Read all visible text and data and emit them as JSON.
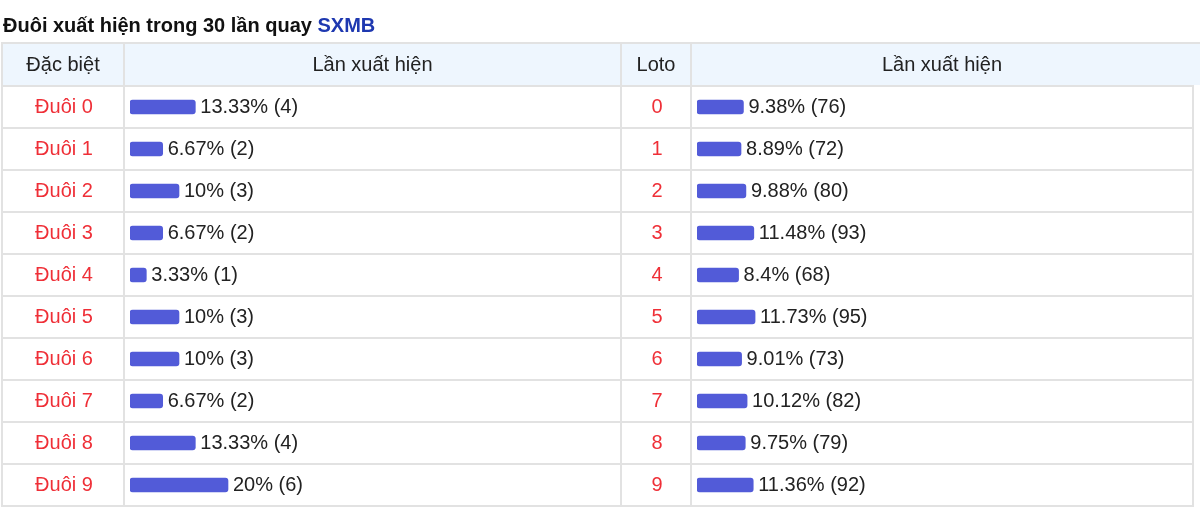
{
  "chart_data": [
    {
      "type": "bar",
      "orientation": "horizontal",
      "title": "Đuôi xuất hiện trong 30 lần quay SXMB",
      "ylabel": "Đặc biệt",
      "xlabel": "Lần xuất hiện",
      "categories": [
        "Đuôi 0",
        "Đuôi 1",
        "Đuôi 2",
        "Đuôi 3",
        "Đuôi 4",
        "Đuôi 5",
        "Đuôi 6",
        "Đuôi 7",
        "Đuôi 8",
        "Đuôi 9"
      ],
      "values": [
        13.33,
        6.67,
        10,
        6.67,
        3.33,
        10,
        10,
        6.67,
        13.33,
        20
      ],
      "value_labels": [
        "13.33% (4)",
        "6.67% (2)",
        "10% (3)",
        "6.67% (2)",
        "3.33% (1)",
        "10% (3)",
        "10% (3)",
        "6.67% (2)",
        "13.33% (4)",
        "20% (6)"
      ],
      "color": "#525bd8",
      "xlim": [
        0,
        100
      ],
      "tick_labels": "y",
      "grid": "y"
    },
    {
      "type": "bar",
      "orientation": "horizontal",
      "ylabel": "Loto",
      "xlabel": "Lần xuất hiện",
      "categories": [
        "0",
        "1",
        "2",
        "3",
        "4",
        "5",
        "6",
        "7",
        "8",
        "9"
      ],
      "values": [
        9.38,
        8.89,
        9.88,
        11.48,
        8.4,
        11.73,
        9.01,
        10.12,
        9.75,
        11.36
      ],
      "value_labels": [
        "9.38% (76)",
        "8.89% (72)",
        "9.88% (80)",
        "11.48% (93)",
        "8.4% (68)",
        "11.73% (95)",
        "9.01% (73)",
        "10.12% (82)",
        "9.75% (79)",
        "11.36% (92)"
      ],
      "color": "#525bd8",
      "xlim": [
        0,
        100
      ],
      "tick_labels": "y",
      "grid": "y"
    }
  ]
}
